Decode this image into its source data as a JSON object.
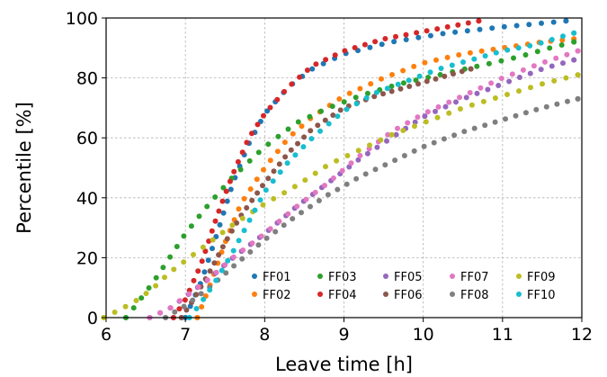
{
  "chart_data": {
    "type": "scatter",
    "title": "",
    "xlabel": "Leave time [h]",
    "ylabel": "Percentile [%]",
    "xlim": [
      6,
      12
    ],
    "ylim": [
      0,
      100
    ],
    "xticks": [
      "6",
      "7",
      "8",
      "9",
      "10",
      "11",
      "12"
    ],
    "yticks": [
      "0",
      "20",
      "40",
      "60",
      "80",
      "100"
    ],
    "grid": true,
    "legend_position": "bottom-right",
    "legend_columns": 5,
    "series": [
      {
        "name": "FF01",
        "color": "#1f77b4",
        "x": [
          7.0,
          7.2,
          7.4,
          7.6,
          7.8,
          8.0,
          8.3,
          8.6,
          9.0,
          9.6,
          10.3,
          11.0,
          11.8
        ],
        "y": [
          0,
          12,
          28,
          45,
          58,
          68,
          77,
          83,
          88,
          92,
          95,
          97,
          99
        ]
      },
      {
        "name": "FF02",
        "color": "#ff7f0e",
        "x": [
          7.15,
          7.3,
          7.5,
          7.7,
          8.0,
          8.3,
          8.6,
          9.0,
          9.5,
          10.0,
          10.5,
          11.0,
          11.5,
          11.9
        ],
        "y": [
          0,
          10,
          25,
          38,
          50,
          60,
          67,
          74,
          80,
          85,
          88,
          90,
          92,
          93
        ]
      },
      {
        "name": "FF03",
        "color": "#2ca02c",
        "x": [
          6.25,
          6.4,
          6.6,
          6.8,
          7.0,
          7.3,
          7.6,
          8.0,
          8.4,
          8.8,
          9.2,
          9.7,
          10.2,
          10.7,
          11.2,
          11.6,
          11.9
        ],
        "y": [
          0,
          5,
          12,
          20,
          28,
          38,
          47,
          57,
          65,
          70,
          74,
          78,
          81,
          84,
          87,
          90,
          92
        ]
      },
      {
        "name": "FF04",
        "color": "#d62728",
        "x": [
          6.85,
          7.0,
          7.2,
          7.4,
          7.6,
          7.8,
          8.0,
          8.3,
          8.6,
          9.0,
          9.5,
          10.1,
          10.7
        ],
        "y": [
          0,
          6,
          18,
          34,
          48,
          60,
          68,
          77,
          84,
          89,
          93,
          96,
          99
        ]
      },
      {
        "name": "FF05",
        "color": "#9467bd",
        "x": [
          6.55,
          6.8,
          7.0,
          7.3,
          7.6,
          8.0,
          8.4,
          8.8,
          9.2,
          9.6,
          10.0,
          10.5,
          11.0,
          11.5,
          11.9
        ],
        "y": [
          0,
          3,
          7,
          13,
          20,
          28,
          37,
          45,
          53,
          60,
          67,
          73,
          78,
          83,
          86
        ]
      },
      {
        "name": "FF06",
        "color": "#8c564b",
        "x": [
          6.95,
          7.1,
          7.3,
          7.5,
          7.7,
          8.0,
          8.3,
          8.6,
          9.0,
          9.4,
          9.8,
          10.2,
          10.6
        ],
        "y": [
          0,
          6,
          15,
          25,
          34,
          45,
          55,
          63,
          70,
          74,
          77,
          80,
          83
        ]
      },
      {
        "name": "FF07",
        "color": "#e377c2",
        "x": [
          6.55,
          6.8,
          7.0,
          7.3,
          7.6,
          8.0,
          8.4,
          8.8,
          9.2,
          9.6,
          10.0,
          10.5,
          11.0,
          11.5,
          11.95
        ],
        "y": [
          0,
          3,
          7,
          13,
          20,
          28,
          37,
          45,
          54,
          62,
          68,
          74,
          80,
          85,
          89
        ]
      },
      {
        "name": "FF08",
        "color": "#7f7f7f",
        "x": [
          6.75,
          7.0,
          7.3,
          7.6,
          8.0,
          8.4,
          8.8,
          9.2,
          9.6,
          10.0,
          10.5,
          11.0,
          11.5,
          11.95
        ],
        "y": [
          0,
          4,
          10,
          17,
          26,
          34,
          41,
          47,
          52,
          57,
          62,
          66,
          70,
          73
        ]
      },
      {
        "name": "FF09",
        "color": "#bcbd22",
        "x": [
          5.97,
          6.2,
          6.4,
          6.6,
          6.8,
          7.0,
          7.3,
          7.6,
          8.0,
          8.4,
          8.8,
          9.2,
          9.6,
          10.0,
          10.5,
          11.0,
          11.5,
          11.95
        ],
        "y": [
          0,
          3,
          6,
          10,
          15,
          19,
          25,
          31,
          38,
          44,
          51,
          56,
          61,
          65,
          70,
          74,
          78,
          81
        ]
      },
      {
        "name": "FF10",
        "color": "#17becf",
        "x": [
          7.05,
          7.2,
          7.4,
          7.6,
          7.8,
          8.0,
          8.3,
          8.6,
          9.0,
          9.4,
          9.8,
          10.2,
          10.6,
          11.0,
          11.4,
          11.9
        ],
        "y": [
          0,
          5,
          13,
          22,
          32,
          42,
          52,
          60,
          69,
          75,
          79,
          83,
          86,
          89,
          91,
          95
        ]
      }
    ]
  }
}
